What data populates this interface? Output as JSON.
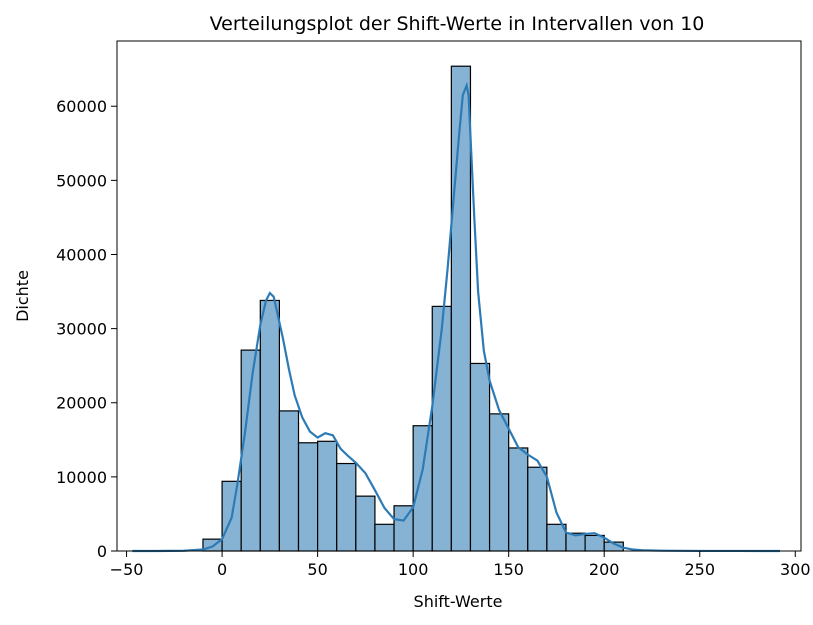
{
  "chart_data": {
    "type": "bar",
    "title": "Verteilungsplot der Shift-Werte in Intervallen von 10",
    "xlabel": "Shift-Werte",
    "ylabel": "Dichte",
    "xlim": [
      -55,
      303
    ],
    "ylim": [
      0,
      68800
    ],
    "x_ticks": [
      -50,
      0,
      50,
      100,
      150,
      200,
      250,
      300
    ],
    "y_ticks": [
      0,
      10000,
      20000,
      30000,
      40000,
      50000,
      60000
    ],
    "bin_width": 10,
    "bins": [
      {
        "x": -5,
        "value": 1600
      },
      {
        "x": 5,
        "value": 9400
      },
      {
        "x": 15,
        "value": 27100
      },
      {
        "x": 25,
        "value": 33800
      },
      {
        "x": 35,
        "value": 18900
      },
      {
        "x": 45,
        "value": 14600
      },
      {
        "x": 55,
        "value": 14800
      },
      {
        "x": 65,
        "value": 11800
      },
      {
        "x": 75,
        "value": 7400
      },
      {
        "x": 85,
        "value": 3600
      },
      {
        "x": 95,
        "value": 6100
      },
      {
        "x": 105,
        "value": 16900
      },
      {
        "x": 115,
        "value": 33000
      },
      {
        "x": 125,
        "value": 65400
      },
      {
        "x": 135,
        "value": 25300
      },
      {
        "x": 145,
        "value": 18500
      },
      {
        "x": 155,
        "value": 13900
      },
      {
        "x": 165,
        "value": 11300
      },
      {
        "x": 175,
        "value": 3600
      },
      {
        "x": 185,
        "value": 2400
      },
      {
        "x": 195,
        "value": 2100
      },
      {
        "x": 205,
        "value": 1200
      }
    ],
    "kde": {
      "x": [
        -47,
        -35,
        -20,
        -10,
        -5,
        0,
        5,
        8,
        12,
        16,
        20,
        23,
        25,
        27,
        29,
        32,
        35,
        38,
        42,
        46,
        50,
        54,
        58,
        62,
        66,
        70,
        75,
        80,
        85,
        90,
        95,
        100,
        105,
        110,
        115,
        118,
        121,
        124,
        126,
        128,
        129,
        130,
        132,
        134,
        137,
        140,
        145,
        150,
        155,
        160,
        165,
        170,
        175,
        180,
        185,
        190,
        195,
        200,
        205,
        210,
        215,
        220,
        230,
        250,
        270,
        292
      ],
      "y": [
        0,
        0,
        30,
        200,
        600,
        1600,
        4500,
        9000,
        16000,
        24000,
        30500,
        33800,
        34800,
        34300,
        32000,
        28500,
        24500,
        21000,
        18000,
        16100,
        15300,
        15900,
        15600,
        13800,
        12800,
        11900,
        10500,
        8200,
        5800,
        4300,
        4100,
        5900,
        11000,
        19500,
        30000,
        38000,
        47000,
        56000,
        61500,
        62800,
        61500,
        56000,
        45000,
        35000,
        27000,
        23000,
        19000,
        16500,
        14000,
        13000,
        12200,
        10000,
        5200,
        2500,
        2100,
        2300,
        2400,
        1800,
        1000,
        450,
        200,
        100,
        40,
        10,
        5,
        0
      ]
    },
    "grid": false,
    "legend": "none",
    "colors": {
      "bar_fill": "#86b3d3",
      "bar_edge": "#000000",
      "kde_line": "#2c7bb6"
    }
  }
}
